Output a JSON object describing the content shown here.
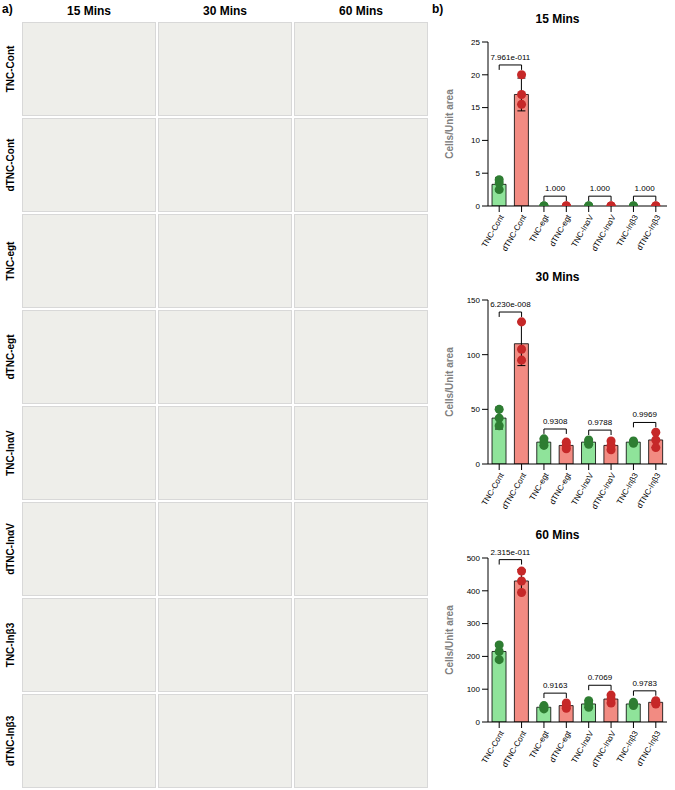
{
  "panel_a": {
    "label": "a)",
    "columns": [
      "15 Mins",
      "30 Mins",
      "60 Mins"
    ],
    "rows": [
      "TNC-Cont",
      "dTNC-Cont",
      "TNC-egt",
      "dTNC-egt",
      "TNC-InαV",
      "dTNC-InαV",
      "TNC-Inβ3",
      "dTNC-Inβ3"
    ]
  },
  "panel_b_label": "b)",
  "chart_data": [
    {
      "type": "bar",
      "title": "15 Mins",
      "y_label": "Cells/Unit area",
      "categories": [
        "TNC-Cont",
        "dTNC-Cont",
        "TNC-egt",
        "dTNC-egt",
        "TNC-InαV",
        "dTNC-InαV",
        "TNC-Inβ3",
        "dTNC-Inβ3"
      ],
      "values": [
        3.3,
        17,
        0,
        0,
        0,
        0,
        0,
        0
      ],
      "errors": [
        1,
        2.5,
        0,
        0,
        0,
        0,
        0,
        0
      ],
      "points": [
        [
          2.5,
          4,
          3.5
        ],
        [
          15.5,
          17,
          20
        ],
        [
          0,
          0,
          0
        ],
        [
          0,
          0,
          0
        ],
        [
          0,
          0,
          0
        ],
        [
          0,
          0,
          0
        ],
        [
          0,
          0,
          0
        ],
        [
          0,
          0,
          0
        ]
      ],
      "colors": [
        "#8fe39a",
        "#f28b82",
        "#8fe39a",
        "#f28b82",
        "#8fe39a",
        "#f28b82",
        "#8fe39a",
        "#f28b82"
      ],
      "point_colors": [
        "#2e7d32",
        "#c62828",
        "#2e7d32",
        "#c62828",
        "#2e7d32",
        "#c62828",
        "#2e7d32",
        "#c62828"
      ],
      "ylim": [
        0,
        25
      ],
      "yticks": [
        0,
        5,
        10,
        15,
        20,
        25
      ],
      "annotations": [
        {
          "from": "TNC-Cont",
          "to": "dTNC-Cont",
          "text": "7.961e-011"
        },
        {
          "from": "TNC-egt",
          "to": "dTNC-egt",
          "text": "1.000"
        },
        {
          "from": "TNC-InαV",
          "to": "dTNC-InαV",
          "text": "1.000"
        },
        {
          "from": "TNC-Inβ3",
          "to": "dTNC-Inβ3",
          "text": "1.000"
        }
      ]
    },
    {
      "type": "bar",
      "title": "30 Mins",
      "y_label": "Cells/Unit area",
      "categories": [
        "TNC-Cont",
        "dTNC-Cont",
        "TNC-egt",
        "dTNC-egt",
        "TNC-InαV",
        "dTNC-InαV",
        "TNC-Inβ3",
        "dTNC-Inβ3"
      ],
      "values": [
        42,
        110,
        20,
        17,
        20,
        17,
        20,
        22
      ],
      "errors": [
        10,
        20,
        3,
        3,
        2,
        4,
        1,
        7
      ],
      "points": [
        [
          35,
          42,
          50
        ],
        [
          95,
          105,
          130
        ],
        [
          17,
          20,
          23
        ],
        [
          14,
          17,
          20
        ],
        [
          18,
          20,
          22
        ],
        [
          13,
          17,
          21
        ],
        [
          19,
          20,
          21
        ],
        [
          15,
          22,
          29
        ]
      ],
      "colors": [
        "#8fe39a",
        "#f28b82",
        "#8fe39a",
        "#f28b82",
        "#8fe39a",
        "#f28b82",
        "#8fe39a",
        "#f28b82"
      ],
      "point_colors": [
        "#2e7d32",
        "#c62828",
        "#2e7d32",
        "#c62828",
        "#2e7d32",
        "#c62828",
        "#2e7d32",
        "#c62828"
      ],
      "ylim": [
        0,
        150
      ],
      "yticks": [
        0,
        50,
        100,
        150
      ],
      "annotations": [
        {
          "from": "TNC-Cont",
          "to": "dTNC-Cont",
          "text": "6.230e-008"
        },
        {
          "from": "TNC-egt",
          "to": "dTNC-egt",
          "text": "0.9308"
        },
        {
          "from": "TNC-InαV",
          "to": "dTNC-InαV",
          "text": "0.9788"
        },
        {
          "from": "TNC-Inβ3",
          "to": "dTNC-Inβ3",
          "text": "0.9969"
        }
      ]
    },
    {
      "type": "bar",
      "title": "60 Mins",
      "y_label": "Cells/Unit area",
      "categories": [
        "TNC-Cont",
        "dTNC-Cont",
        "TNC-egt",
        "dTNC-egt",
        "TNC-InαV",
        "dTNC-InαV",
        "TNC-Inβ3",
        "dTNC-Inβ3"
      ],
      "values": [
        215,
        430,
        45,
        50,
        55,
        70,
        55,
        60
      ],
      "errors": [
        25,
        35,
        5,
        8,
        10,
        12,
        5,
        5
      ],
      "points": [
        [
          190,
          215,
          235
        ],
        [
          395,
          430,
          460
        ],
        [
          40,
          45,
          50
        ],
        [
          42,
          50,
          58
        ],
        [
          45,
          55,
          65
        ],
        [
          58,
          70,
          82
        ],
        [
          50,
          55,
          60
        ],
        [
          55,
          60,
          65
        ]
      ],
      "colors": [
        "#8fe39a",
        "#f28b82",
        "#8fe39a",
        "#f28b82",
        "#8fe39a",
        "#f28b82",
        "#8fe39a",
        "#f28b82"
      ],
      "point_colors": [
        "#2e7d32",
        "#c62828",
        "#2e7d32",
        "#c62828",
        "#2e7d32",
        "#c62828",
        "#2e7d32",
        "#c62828"
      ],
      "ylim": [
        0,
        500
      ],
      "yticks": [
        0,
        100,
        200,
        300,
        400,
        500
      ],
      "annotations": [
        {
          "from": "TNC-Cont",
          "to": "dTNC-Cont",
          "text": "2.315e-011"
        },
        {
          "from": "TNC-egt",
          "to": "dTNC-egt",
          "text": "0.9163"
        },
        {
          "from": "TNC-InαV",
          "to": "dTNC-InαV",
          "text": "0.7069"
        },
        {
          "from": "TNC-Inβ3",
          "to": "dTNC-Inβ3",
          "text": "0.9783"
        }
      ]
    }
  ]
}
